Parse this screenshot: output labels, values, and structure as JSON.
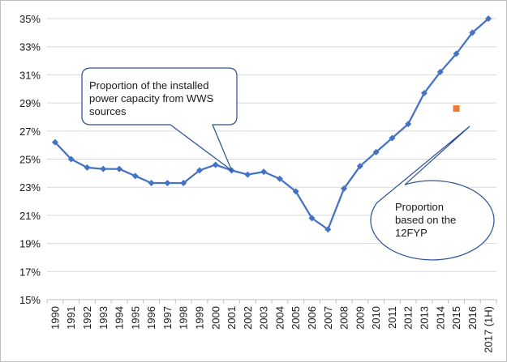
{
  "chart_data": {
    "type": "line",
    "title": "",
    "xlabel": "",
    "ylabel": "",
    "categories": [
      "1990",
      "1991",
      "1992",
      "1993",
      "1994",
      "1995",
      "1996",
      "1997",
      "1998",
      "1999",
      "2000",
      "2001",
      "2002",
      "2003",
      "2004",
      "2005",
      "2006",
      "2007",
      "2008",
      "2009",
      "2010",
      "2011",
      "2012",
      "2013",
      "2014",
      "2015",
      "2016",
      "2017 (1H)"
    ],
    "series": [
      {
        "name": "Proportion of the installed power capacity from WWS sources",
        "color": "#4472C4",
        "marker": "diamond",
        "values": [
          26.2,
          25.0,
          24.4,
          24.3,
          24.3,
          23.8,
          23.3,
          23.3,
          23.3,
          24.2,
          24.6,
          24.2,
          23.9,
          24.1,
          23.6,
          22.7,
          20.8,
          20.0,
          22.9,
          24.5,
          25.5,
          26.5,
          27.5,
          29.7,
          31.2,
          32.5,
          34.0,
          35.0
        ]
      },
      {
        "name": "Proportion based on the 12FYP",
        "color": "#ED7D31",
        "marker": "square",
        "points": [
          {
            "x": "2015",
            "y": 28.6
          }
        ]
      }
    ],
    "ylim": [
      15,
      35
    ],
    "yticks": [
      15,
      17,
      19,
      21,
      23,
      25,
      27,
      29,
      31,
      33,
      35
    ],
    "ytick_labels": [
      "15%",
      "17%",
      "19%",
      "21%",
      "23%",
      "25%",
      "27%",
      "29%",
      "31%",
      "33%",
      "35%"
    ],
    "y_unit": "%",
    "grid": "horizontal",
    "legend": "none",
    "annotations": [
      {
        "text": "Proportion of the installed power capacity from WWS sources",
        "shape": "rounded-rectangle-callout",
        "points_to": "2001"
      },
      {
        "text": "Proportion based on the 12FYP",
        "shape": "ellipse-callout",
        "points_to": "2015"
      }
    ]
  }
}
